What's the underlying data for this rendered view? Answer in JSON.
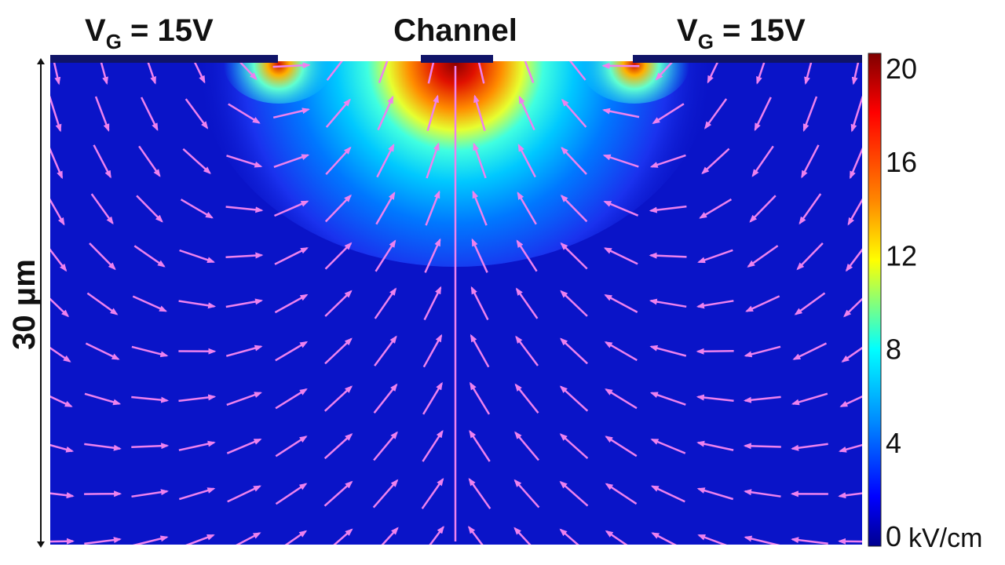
{
  "figure": {
    "gate_left_label": {
      "main": "V",
      "sub": "G",
      "rest": " = 15V"
    },
    "gate_right_label": {
      "main": "V",
      "sub": "G",
      "rest": " = 15V"
    },
    "channel_label": "Channel",
    "depth_label": "30 μm"
  },
  "colorbar": {
    "ticks": [
      "20",
      "16",
      "12",
      "8",
      "4",
      "0"
    ],
    "unit": "kV/cm",
    "colors": [
      "#7f0000",
      "#ff0000",
      "#ff8800",
      "#ffff00",
      "#00ffff",
      "#0088ff",
      "#0000ff",
      "#00008f"
    ]
  },
  "field": {
    "arrow_color": "#ee82ee",
    "background_color": "#0a14c8",
    "electrode_color": "#101468"
  }
}
